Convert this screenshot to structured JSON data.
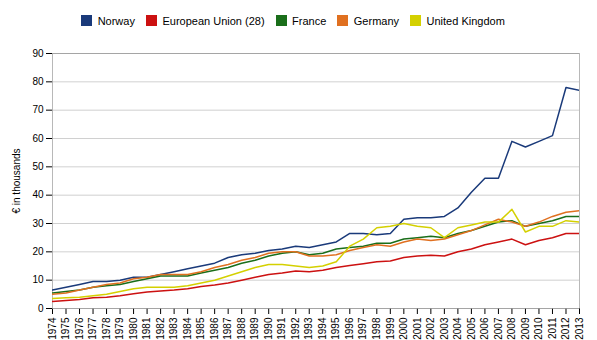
{
  "chart_data": {
    "type": "line",
    "x": [
      1974,
      1975,
      1976,
      1977,
      1978,
      1979,
      1980,
      1981,
      1982,
      1983,
      1984,
      1985,
      1986,
      1987,
      1988,
      1989,
      1990,
      1991,
      1992,
      1993,
      1994,
      1995,
      1996,
      1997,
      1998,
      1999,
      2000,
      2001,
      2002,
      2003,
      2004,
      2005,
      2006,
      2007,
      2008,
      2009,
      2010,
      2011,
      2012,
      2013
    ],
    "series": [
      {
        "name": "Norway",
        "color": "#1a3a7a",
        "values": [
          6.5,
          7.5,
          8.5,
          9.5,
          9.5,
          10.0,
          11.0,
          11.0,
          12.0,
          13.0,
          14.0,
          15.0,
          16.0,
          18.0,
          19.0,
          19.5,
          20.5,
          21.0,
          22.0,
          21.5,
          22.5,
          23.5,
          26.5,
          26.5,
          26.0,
          26.5,
          31.5,
          32.0,
          32.0,
          32.5,
          35.5,
          41.0,
          46.0,
          46.0,
          59.0,
          57.0,
          59.0,
          61.0,
          78.0,
          77.0
        ]
      },
      {
        "name": "European Union (28)",
        "color": "#cc1111",
        "values": [
          2.5,
          2.8,
          3.2,
          3.8,
          4.0,
          4.5,
          5.2,
          5.8,
          6.2,
          6.5,
          7.0,
          7.8,
          8.3,
          9.0,
          10.0,
          11.0,
          12.0,
          12.5,
          13.2,
          13.0,
          13.5,
          14.5,
          15.2,
          15.8,
          16.5,
          16.8,
          18.0,
          18.5,
          18.8,
          18.5,
          20.0,
          21.0,
          22.5,
          23.5,
          24.5,
          22.5,
          24.0,
          25.0,
          26.5,
          26.5
        ]
      },
      {
        "name": "France",
        "color": "#1a6e1a",
        "values": [
          5.5,
          6.0,
          6.5,
          7.5,
          8.0,
          8.5,
          9.5,
          10.5,
          11.5,
          11.5,
          11.5,
          12.5,
          13.5,
          14.5,
          16.0,
          17.0,
          18.5,
          19.5,
          20.0,
          19.0,
          19.5,
          21.0,
          21.5,
          22.0,
          23.0,
          23.0,
          24.5,
          25.0,
          25.5,
          25.0,
          26.5,
          27.5,
          29.0,
          30.5,
          31.0,
          29.0,
          30.0,
          31.0,
          32.5,
          32.5
        ]
      },
      {
        "name": "Germany",
        "color": "#e07020",
        "values": [
          5.0,
          5.5,
          6.5,
          7.5,
          8.5,
          9.0,
          10.5,
          11.0,
          12.0,
          12.0,
          12.0,
          13.0,
          14.5,
          15.5,
          17.0,
          18.0,
          19.5,
          20.0,
          20.0,
          18.5,
          18.5,
          19.0,
          20.5,
          21.5,
          22.5,
          22.0,
          23.5,
          24.5,
          24.0,
          24.5,
          26.0,
          27.5,
          29.5,
          31.5,
          30.5,
          29.0,
          30.5,
          32.5,
          34.0,
          34.5
        ]
      },
      {
        "name": "United Kingdom",
        "color": "#d4d000",
        "values": [
          3.5,
          3.8,
          4.0,
          4.5,
          5.0,
          6.0,
          7.0,
          7.5,
          7.5,
          7.5,
          8.0,
          9.0,
          10.0,
          11.5,
          13.0,
          14.5,
          15.5,
          15.5,
          15.0,
          14.5,
          15.0,
          16.5,
          22.0,
          24.5,
          28.5,
          29.0,
          30.0,
          29.0,
          28.5,
          25.0,
          28.5,
          29.5,
          30.5,
          30.5,
          35.0,
          27.0,
          29.0,
          29.0,
          31.0,
          30.5
        ]
      }
    ],
    "ylabel": "€ in thousands",
    "xlim": [
      1974,
      2013
    ],
    "xticks": [
      1974,
      1975,
      1976,
      1977,
      1978,
      1979,
      1980,
      1981,
      1982,
      1983,
      1984,
      1985,
      1986,
      1987,
      1988,
      1989,
      1990,
      1991,
      1992,
      1993,
      1994,
      1995,
      1996,
      1997,
      1998,
      1999,
      2000,
      2001,
      2002,
      2003,
      2004,
      2005,
      2006,
      2007,
      2008,
      2009,
      2010,
      2011,
      2012,
      2013
    ],
    "ylim": [
      0,
      90
    ],
    "yticks": [
      0,
      10,
      20,
      30,
      40,
      50,
      60,
      70,
      80,
      90
    ],
    "grid": true,
    "legend": "top"
  }
}
